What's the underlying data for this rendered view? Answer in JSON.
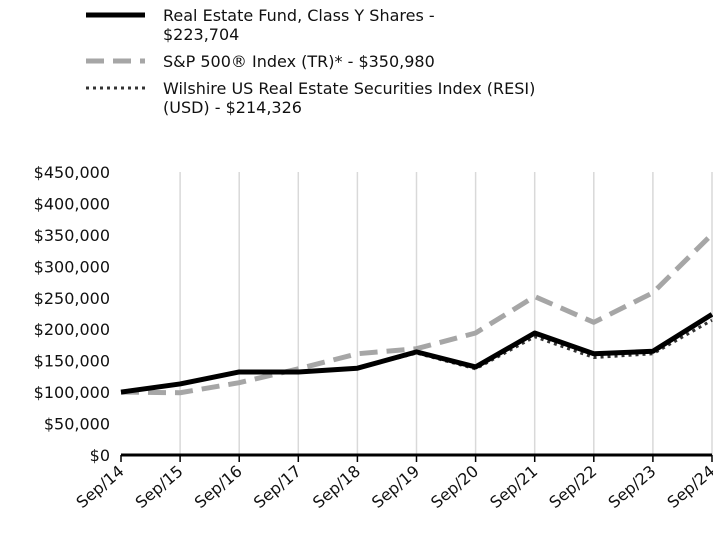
{
  "chart_data": {
    "type": "line",
    "categories": [
      "Sep/14",
      "Sep/15",
      "Sep/16",
      "Sep/17",
      "Sep/18",
      "Sep/19",
      "Sep/20",
      "Sep/21",
      "Sep/22",
      "Sep/23",
      "Sep/24"
    ],
    "series": [
      {
        "name": "Real Estate Fund, Class Y Shares - $223,704",
        "color": "#000000",
        "style": "solid",
        "values": [
          100000,
          113000,
          132000,
          132000,
          138000,
          164000,
          140000,
          194000,
          161000,
          165000,
          223704
        ]
      },
      {
        "name": "S&P 500® Index (TR)* - $350,980",
        "color": "#a6a6a6",
        "style": "dashed",
        "values": [
          100000,
          99000,
          115000,
          137000,
          161000,
          169000,
          194000,
          252000,
          211000,
          258000,
          350980
        ]
      },
      {
        "name": "Wilshire US Real Estate Securities Index (RESI) (USD) - $214,326",
        "color": "#333333",
        "style": "dotted",
        "values": [
          100000,
          113000,
          131000,
          131000,
          138000,
          162000,
          137000,
          188000,
          155000,
          161000,
          214326
        ]
      }
    ],
    "ylim": [
      0,
      450000
    ],
    "yticks": [
      {
        "value": 0,
        "label": "$0"
      },
      {
        "value": 50000,
        "label": "$50,000"
      },
      {
        "value": 100000,
        "label": "$100,000"
      },
      {
        "value": 150000,
        "label": "$150,000"
      },
      {
        "value": 200000,
        "label": "$200,000"
      },
      {
        "value": 250000,
        "label": "$250,000"
      },
      {
        "value": 300000,
        "label": "$300,000"
      },
      {
        "value": 350000,
        "label": "$350,000"
      },
      {
        "value": 400000,
        "label": "$400,000"
      },
      {
        "value": 450000,
        "label": "$450,000"
      }
    ],
    "grid": true
  }
}
